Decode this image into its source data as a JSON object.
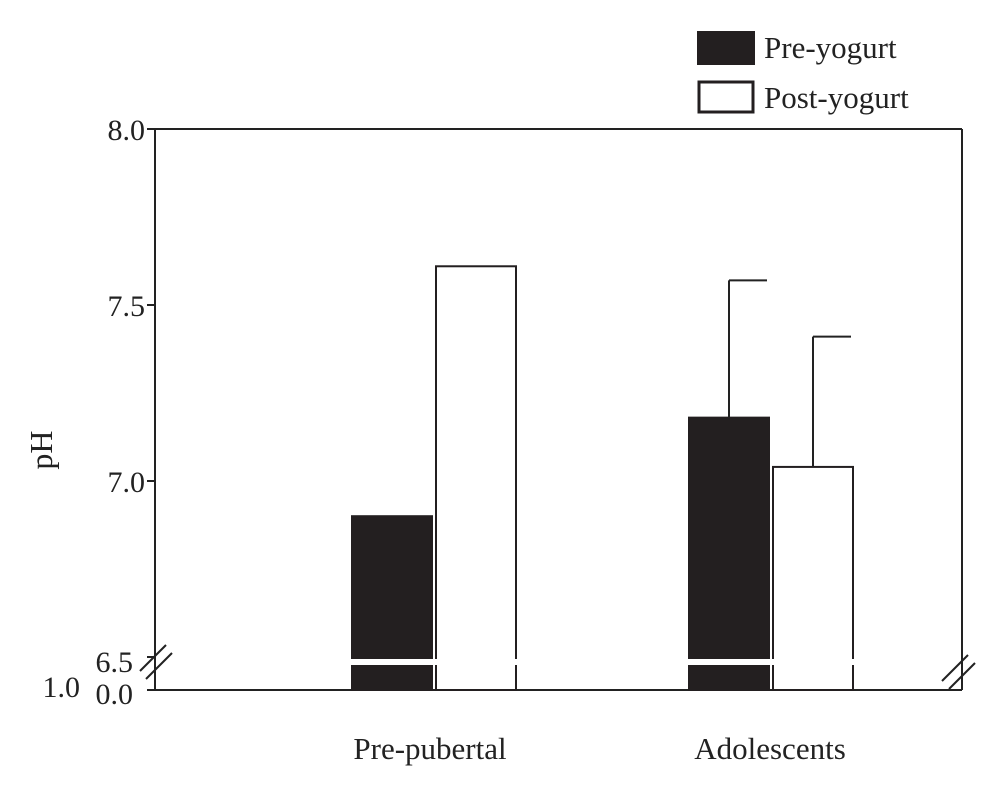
{
  "chart_data": {
    "type": "bar",
    "title": "",
    "xlabel": "",
    "ylabel": "pH",
    "categories": [
      "Pre-pubertal",
      "Adolescents"
    ],
    "series": [
      {
        "name": "Pre-yogurt",
        "fill": "#231f20",
        "values": [
          6.9,
          7.18
        ],
        "error_upper": [
          null,
          7.57
        ]
      },
      {
        "name": "Post-yogurt",
        "fill": "#ffffff",
        "values": [
          7.61,
          7.04
        ],
        "error_upper": [
          null,
          7.41
        ]
      }
    ],
    "ylim": [
      6.5,
      8.0
    ],
    "yticks": [
      "8.0",
      "7.5",
      "7.0",
      "6.5"
    ],
    "axis_break": {
      "from": 0.0,
      "to": 6.5
    },
    "break_tick_labels": [
      "1.0",
      "0.0"
    ],
    "grid": false,
    "legend_position": "top-right",
    "colors": {
      "ink": "#231f20",
      "axis": "#222222"
    }
  }
}
